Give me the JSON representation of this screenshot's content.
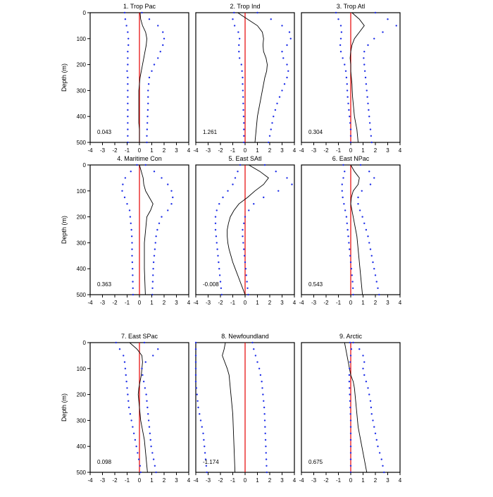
{
  "page": {
    "background": "#ffffff"
  },
  "colors": {
    "line": "#000000",
    "bounds": "#1f2fe8",
    "zero": "#e60000",
    "frame": "#000000"
  },
  "axis_labels": {
    "xticks": [
      "-4",
      "-3",
      "-2",
      "-1",
      "0",
      "1",
      "2",
      "3",
      "4"
    ],
    "yticks": [
      "0",
      "100",
      "200",
      "300",
      "400",
      "500"
    ],
    "ylabel": "Depth (m)"
  },
  "chart_data": {
    "type": "line",
    "xlim": [
      -4,
      4
    ],
    "ylim": [
      0,
      500
    ],
    "y_inverted": true,
    "depths": [
      0,
      25,
      50,
      75,
      100,
      125,
      150,
      175,
      200,
      225,
      250,
      275,
      300,
      325,
      350,
      375,
      400,
      425,
      450,
      475,
      500
    ],
    "series_styles": {
      "central": "solid-black",
      "lower": "blue-dots",
      "upper": "blue-dots",
      "zero": "red-vertical"
    },
    "panels": [
      {
        "title": "1. Trop Pac",
        "value_label": "0.043",
        "central": [
          0.05,
          0.1,
          0.25,
          0.5,
          0.6,
          0.55,
          0.45,
          0.35,
          0.25,
          0.15,
          0.05,
          0.0,
          -0.05,
          -0.05,
          -0.05,
          -0.05,
          -0.05,
          -0.05,
          0.0,
          0.0,
          0.0
        ],
        "lower": [
          -1.2,
          -1.15,
          -1.05,
          -0.95,
          -0.9,
          -0.9,
          -0.95,
          -0.95,
          -0.95,
          -1.0,
          -0.95,
          -0.95,
          -0.95,
          -0.95,
          -0.95,
          -0.95,
          -0.95,
          -0.95,
          -0.95,
          -0.95,
          -0.95
        ],
        "upper": [
          0.2,
          0.8,
          1.5,
          1.9,
          2.0,
          1.9,
          1.7,
          1.5,
          1.2,
          1.0,
          0.8,
          0.75,
          0.7,
          0.7,
          0.7,
          0.68,
          0.66,
          0.64,
          0.62,
          0.6,
          0.6
        ]
      },
      {
        "title": "2. Trop Ind",
        "value_label": "1.261",
        "central": [
          -0.6,
          0.2,
          1.0,
          1.4,
          1.5,
          1.45,
          1.5,
          1.7,
          1.8,
          1.75,
          1.6,
          1.5,
          1.4,
          1.3,
          1.2,
          1.1,
          1.0,
          0.95,
          0.9,
          0.85,
          0.8
        ],
        "lower": [
          -0.9,
          -1.0,
          -0.85,
          -0.55,
          -0.45,
          -0.5,
          -0.5,
          -0.45,
          -0.3,
          -0.25,
          -0.2,
          -0.2,
          -0.18,
          -0.16,
          -0.15,
          -0.14,
          -0.12,
          -0.1,
          -0.1,
          -0.1,
          -0.1
        ],
        "upper": [
          1.0,
          2.1,
          3.0,
          3.6,
          3.7,
          3.4,
          3.0,
          3.1,
          3.4,
          3.5,
          3.4,
          3.2,
          3.0,
          2.8,
          2.6,
          2.45,
          2.3,
          2.2,
          2.1,
          2.0,
          1.9
        ]
      },
      {
        "title": "3. Trop Atl",
        "value_label": "0.304",
        "central": [
          0.1,
          0.7,
          1.1,
          0.7,
          0.3,
          0.1,
          0.0,
          -0.05,
          0.0,
          0.0,
          0.05,
          0.1,
          0.12,
          0.15,
          0.2,
          0.25,
          0.3,
          0.4,
          0.5,
          0.55,
          0.6
        ],
        "lower": [
          -1.2,
          -1.0,
          -0.8,
          -0.75,
          -0.8,
          -0.85,
          -0.8,
          -0.65,
          -0.5,
          -0.4,
          -0.35,
          -0.3,
          -0.28,
          -0.25,
          -0.2,
          -0.15,
          -0.1,
          -0.05,
          0.0,
          0.0,
          0.0
        ],
        "upper": [
          2.0,
          3.0,
          3.7,
          2.6,
          1.9,
          1.4,
          1.1,
          1.05,
          1.1,
          1.15,
          1.2,
          1.25,
          1.3,
          1.35,
          1.4,
          1.45,
          1.5,
          1.55,
          1.6,
          1.65,
          1.7
        ]
      },
      {
        "title": "4. Maritime Con",
        "value_label": "0.363",
        "central": [
          0.0,
          0.15,
          0.3,
          0.35,
          0.5,
          0.8,
          1.1,
          0.9,
          0.6,
          0.55,
          0.5,
          0.45,
          0.4,
          0.4,
          0.4,
          0.4,
          0.4,
          0.42,
          0.44,
          0.46,
          0.48
        ],
        "lower": [
          -0.2,
          -0.7,
          -1.15,
          -1.35,
          -1.4,
          -1.2,
          -1.0,
          -0.8,
          -0.75,
          -0.7,
          -0.65,
          -0.62,
          -0.6,
          -0.6,
          -0.6,
          -0.58,
          -0.56,
          -0.55,
          -0.54,
          -0.53,
          -0.52
        ],
        "upper": [
          0.5,
          1.2,
          1.8,
          2.3,
          2.6,
          2.7,
          2.6,
          2.3,
          1.8,
          1.6,
          1.45,
          1.35,
          1.3,
          1.25,
          1.2,
          1.15,
          1.12,
          1.1,
          1.08,
          1.06,
          1.04
        ]
      },
      {
        "title": "5. East SAtl",
        "value_label": "-0.008",
        "central": [
          0.3,
          1.2,
          1.9,
          1.5,
          0.8,
          0.2,
          -0.5,
          -0.9,
          -1.2,
          -1.35,
          -1.45,
          -1.45,
          -1.4,
          -1.3,
          -1.15,
          -1.0,
          -0.8,
          -0.6,
          -0.4,
          -0.2,
          0.0
        ],
        "lower": [
          -0.4,
          -0.6,
          -0.8,
          -1.0,
          -1.4,
          -1.8,
          -2.1,
          -2.3,
          -2.4,
          -2.4,
          -2.4,
          -2.35,
          -2.3,
          -2.25,
          -2.2,
          -2.15,
          -2.1,
          -2.05,
          -2.0,
          -1.95,
          -1.9
        ],
        "upper": [
          1.6,
          2.5,
          3.4,
          3.8,
          2.7,
          1.5,
          0.7,
          0.3,
          0.0,
          -0.1,
          -0.2,
          -0.2,
          -0.15,
          -0.1,
          -0.05,
          0.0,
          0.05,
          0.1,
          0.15,
          0.2,
          0.25
        ]
      },
      {
        "title": "6. East NPac",
        "value_label": "0.543",
        "central": [
          0.0,
          0.3,
          0.7,
          0.6,
          0.2,
          0.05,
          0.0,
          0.1,
          0.2,
          0.3,
          0.4,
          0.5,
          0.55,
          0.6,
          0.65,
          0.7,
          0.75,
          0.8,
          0.85,
          0.9,
          0.95
        ],
        "lower": [
          -0.6,
          -0.5,
          -0.6,
          -0.7,
          -0.7,
          -0.65,
          -0.55,
          -0.45,
          -0.35,
          -0.3,
          -0.25,
          -0.2,
          -0.15,
          -0.1,
          -0.05,
          0.0,
          0.05,
          0.1,
          0.15,
          0.18,
          0.2
        ],
        "upper": [
          0.8,
          1.5,
          1.9,
          1.6,
          0.9,
          0.6,
          0.6,
          0.75,
          0.95,
          1.1,
          1.25,
          1.4,
          1.5,
          1.6,
          1.7,
          1.8,
          1.9,
          2.0,
          2.1,
          2.2,
          2.3
        ]
      },
      {
        "title": "7. East SPac",
        "value_label": "0.098",
        "central": [
          -0.8,
          -0.2,
          0.2,
          0.25,
          0.2,
          0.15,
          0.05,
          -0.05,
          -0.1,
          -0.05,
          0.0,
          0.05,
          0.1,
          0.2,
          0.3,
          0.4,
          0.45,
          0.5,
          0.55,
          0.6,
          0.65
        ],
        "lower": [
          -1.9,
          -1.6,
          -1.3,
          -1.2,
          -1.15,
          -1.1,
          -1.05,
          -1.0,
          -0.95,
          -0.9,
          -0.85,
          -0.75,
          -0.65,
          -0.55,
          -0.45,
          -0.35,
          -0.25,
          -0.15,
          -0.05,
          0.05,
          0.1
        ],
        "upper": [
          0.4,
          1.5,
          1.1,
          0.5,
          0.2,
          0.25,
          0.35,
          0.45,
          0.55,
          0.6,
          0.65,
          0.7,
          0.75,
          0.8,
          0.85,
          0.9,
          0.95,
          1.05,
          1.15,
          1.25,
          1.35
        ]
      },
      {
        "title": "8. Newfoundland",
        "value_label": "-1.174",
        "central": [
          -1.6,
          -1.7,
          -1.85,
          -1.65,
          -1.45,
          -1.3,
          -1.25,
          -1.2,
          -1.15,
          -1.1,
          -1.05,
          -1.0,
          -0.98,
          -0.96,
          -0.94,
          -0.92,
          -0.9,
          -0.88,
          -0.86,
          -0.84,
          -0.82
        ],
        "lower": [
          -4.0,
          -4.0,
          -4.0,
          -4.0,
          -4.0,
          -4.0,
          -4.0,
          -3.95,
          -3.9,
          -3.85,
          -3.8,
          -3.7,
          -3.6,
          -3.5,
          -3.4,
          -3.35,
          -3.3,
          -3.25,
          -3.2,
          -3.15,
          -3.1
        ],
        "upper": [
          0.6,
          0.7,
          0.85,
          1.0,
          1.15,
          1.25,
          1.35,
          1.4,
          1.45,
          1.5,
          1.55,
          1.58,
          1.6,
          1.62,
          1.64,
          1.66,
          1.68,
          1.7,
          1.72,
          1.74,
          1.76
        ]
      },
      {
        "title": "9. Arctic",
        "value_label": "0.675",
        "central": [
          -0.5,
          -0.4,
          -0.3,
          -0.2,
          -0.1,
          0.0,
          0.2,
          0.3,
          0.35,
          0.4,
          0.45,
          0.5,
          0.55,
          0.6,
          0.7,
          0.8,
          0.9,
          1.0,
          1.1,
          1.2,
          1.3
        ],
        "lower": [
          -0.05,
          0.05,
          0.0,
          -0.05,
          -0.1,
          -0.12,
          -0.12,
          -0.1,
          -0.08,
          -0.06,
          -0.04,
          -0.02,
          0.0,
          0.0,
          0.0,
          0.0,
          0.0,
          0.0,
          0.0,
          0.0,
          0.0
        ],
        "upper": [
          0.2,
          0.7,
          1.0,
          1.1,
          1.0,
          1.1,
          1.25,
          1.4,
          1.5,
          1.6,
          1.65,
          1.7,
          1.8,
          1.9,
          2.0,
          2.1,
          2.2,
          2.35,
          2.5,
          2.6,
          2.7
        ]
      }
    ]
  }
}
